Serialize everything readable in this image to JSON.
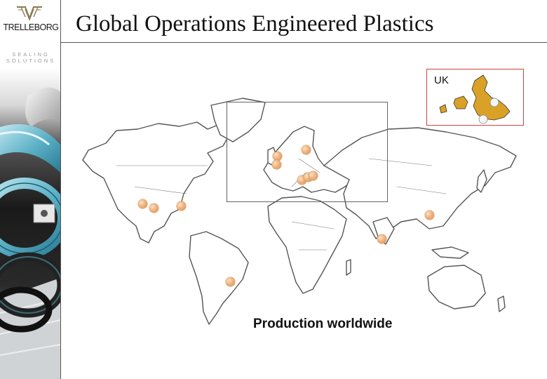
{
  "brand": {
    "logo_text": "TRELLEBORG",
    "tagline_line1": "SEALING",
    "tagline_line2": "SOLUTIONS",
    "logo_color": "#8a7a52"
  },
  "header": {
    "title": "Global Operations Engineered Plastics"
  },
  "map": {
    "caption": "Production worldwide",
    "inset_label": "UK",
    "inset_border_color": "#d24040",
    "marker_color": "#f0b27e",
    "inset_land_color": "#d9a227",
    "site_count": 14
  }
}
